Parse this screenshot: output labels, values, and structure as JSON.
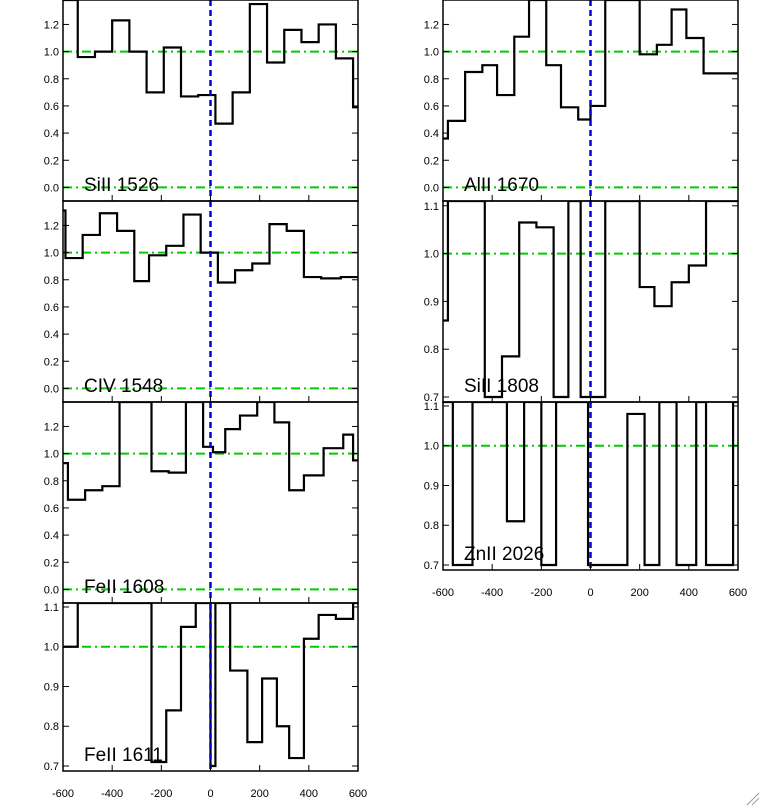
{
  "chart_data": [
    {
      "type": "line",
      "label": "SiII 1526",
      "xlim": [
        -600,
        600
      ],
      "ylim": [
        -0.1,
        1.38
      ],
      "yticks": [
        "0.0",
        "0.2",
        "0.4",
        "0.6",
        "0.8",
        "1.0",
        "1.2"
      ],
      "yticks_values": [
        0.0,
        0.2,
        0.4,
        0.6,
        0.8,
        1.0,
        1.2
      ],
      "xticks": [],
      "x": [
        -600,
        -540,
        -470,
        -400,
        -330,
        -260,
        -190,
        -120,
        -50,
        20,
        90,
        160,
        230,
        300,
        370,
        440,
        510,
        580
      ],
      "y": [
        1.38,
        0.96,
        1.0,
        1.23,
        1.0,
        0.7,
        1.03,
        0.67,
        0.68,
        0.47,
        0.7,
        1.35,
        0.92,
        1.16,
        1.07,
        1.2,
        0.95,
        0.59
      ],
      "reference_lines_y": [
        1.0,
        0.0
      ],
      "velocity_marker_x": 0
    },
    {
      "type": "line",
      "label": "AlII 1670",
      "xlim": [
        -600,
        600
      ],
      "ylim": [
        -0.1,
        1.38
      ],
      "yticks": [
        "0.0",
        "0.2",
        "0.4",
        "0.6",
        "0.8",
        "1.0",
        "1.2"
      ],
      "yticks_values": [
        0.0,
        0.2,
        0.4,
        0.6,
        0.8,
        1.0,
        1.2
      ],
      "xticks": [],
      "x": [
        -600,
        -580,
        -510,
        -440,
        -380,
        -310,
        -250,
        -180,
        -120,
        -50,
        0,
        60,
        120,
        200,
        270,
        330,
        390,
        460,
        520,
        580
      ],
      "y": [
        0.36,
        0.49,
        0.85,
        0.9,
        0.68,
        1.11,
        1.38,
        0.9,
        0.59,
        0.5,
        0.6,
        1.38,
        1.38,
        0.98,
        1.05,
        1.31,
        1.1,
        0.84,
        0.84,
        0.84
      ],
      "reference_lines_y": [
        1.0,
        0.0
      ],
      "velocity_marker_x": 0
    },
    {
      "type": "line",
      "label": "CIV 1548",
      "xlim": [
        -600,
        600
      ],
      "ylim": [
        -0.1,
        1.38
      ],
      "yticks": [
        "0.0",
        "0.2",
        "0.4",
        "0.6",
        "0.8",
        "1.0",
        "1.2"
      ],
      "yticks_values": [
        0.0,
        0.2,
        0.4,
        0.6,
        0.8,
        1.0,
        1.2
      ],
      "xticks": [],
      "x": [
        -600,
        -590,
        -520,
        -450,
        -380,
        -310,
        -250,
        -180,
        -110,
        -40,
        30,
        100,
        170,
        240,
        310,
        380,
        450,
        530
      ],
      "y": [
        1.31,
        0.96,
        1.13,
        1.29,
        1.16,
        0.79,
        0.98,
        1.05,
        1.28,
        1.0,
        0.78,
        0.87,
        0.92,
        1.21,
        1.16,
        0.82,
        0.81,
        0.82
      ],
      "reference_lines_y": [
        1.0,
        0.0
      ],
      "velocity_marker_x": 0
    },
    {
      "type": "line",
      "label": "SiII 1808",
      "xlim": [
        -600,
        600
      ],
      "ylim": [
        0.7,
        1.11
      ],
      "yticks": [
        "0.7",
        "0.8",
        "0.9",
        "1.0",
        "1.1"
      ],
      "yticks_values": [
        0.7,
        0.8,
        0.9,
        1.0,
        1.1
      ],
      "xticks": [],
      "x": [
        -600,
        -580,
        -430,
        -360,
        -290,
        -220,
        -150,
        -90,
        -40,
        60,
        200,
        260,
        330,
        400,
        470
      ],
      "y": [
        0.86,
        1.11,
        0.7,
        0.785,
        1.065,
        1.055,
        0.7,
        1.11,
        0.7,
        1.11,
        0.93,
        0.89,
        0.94,
        0.975,
        1.11
      ],
      "reference_lines_y": [
        1.0
      ],
      "velocity_marker_x": 0
    },
    {
      "type": "line",
      "label": "FeII 1608",
      "xlim": [
        -600,
        600
      ],
      "ylim": [
        -0.1,
        1.38
      ],
      "yticks": [
        "0.0",
        "0.2",
        "0.4",
        "0.6",
        "0.8",
        "1.0",
        "1.2"
      ],
      "yticks_values": [
        0.0,
        0.2,
        0.4,
        0.6,
        0.8,
        1.0,
        1.2
      ],
      "xticks": [],
      "x": [
        -600,
        -580,
        -510,
        -440,
        -370,
        -240,
        -170,
        -100,
        -30,
        10,
        60,
        120,
        190,
        260,
        320,
        380,
        460,
        540,
        580
      ],
      "y": [
        0.93,
        0.66,
        0.73,
        0.76,
        1.38,
        0.87,
        0.86,
        1.38,
        1.05,
        1.01,
        1.18,
        1.28,
        1.38,
        1.23,
        0.73,
        0.84,
        1.04,
        1.14,
        0.95
      ],
      "reference_lines_y": [
        1.0,
        0.0
      ],
      "velocity_marker_x": 0
    },
    {
      "type": "line",
      "label": "ZnII 2026",
      "xlim": [
        -600,
        600
      ],
      "ylim": [
        0.7,
        1.11
      ],
      "yticks": [
        "0.7",
        "0.8",
        "0.9",
        "1.0",
        "1.1"
      ],
      "yticks_values": [
        0.7,
        0.8,
        0.9,
        1.0,
        1.1
      ],
      "xticks": [
        "-600",
        "-400",
        "-200",
        "0",
        "200",
        "400",
        "600"
      ],
      "xticks_values": [
        -600,
        -400,
        -200,
        0,
        200,
        400,
        600
      ],
      "x": [
        -600,
        -560,
        -480,
        -340,
        -270,
        -200,
        -140,
        -10,
        150,
        220,
        280,
        350,
        430,
        470,
        580
      ],
      "y": [
        1.11,
        0.7,
        1.11,
        0.81,
        1.11,
        0.7,
        1.11,
        0.7,
        1.08,
        0.7,
        1.11,
        0.7,
        1.11,
        0.7,
        1.11
      ],
      "reference_lines_y": [
        1.0
      ],
      "velocity_marker_x": 0
    },
    {
      "type": "line",
      "label": "FeII 1611",
      "xlim": [
        -600,
        600
      ],
      "ylim": [
        0.7,
        1.11
      ],
      "yticks": [
        "0.7",
        "0.8",
        "0.9",
        "1.0",
        "1.1"
      ],
      "yticks_values": [
        0.7,
        0.8,
        0.9,
        1.0,
        1.1
      ],
      "xticks": [
        "-600",
        "-400",
        "-200",
        "0",
        "200",
        "400",
        "600"
      ],
      "xticks_values": [
        -600,
        -400,
        -200,
        0,
        200,
        400,
        600
      ],
      "x": [
        -600,
        -540,
        -470,
        -240,
        -180,
        -120,
        -60,
        0,
        20,
        80,
        150,
        210,
        270,
        320,
        380,
        440,
        510,
        580
      ],
      "y": [
        1.0,
        1.11,
        1.11,
        0.71,
        0.84,
        1.05,
        1.11,
        0.7,
        1.11,
        0.94,
        0.76,
        0.92,
        0.8,
        0.72,
        1.02,
        1.08,
        1.07,
        1.11
      ],
      "reference_lines_y": [
        1.0
      ],
      "velocity_marker_x": 0
    }
  ],
  "colors": {
    "spectrum": "#000000",
    "reference_line": "#00cc00",
    "velocity_marker": "#0000dd",
    "frame": "#000000"
  }
}
